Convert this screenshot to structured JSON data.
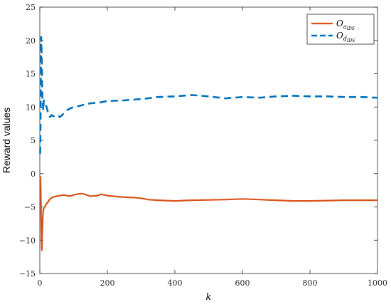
{
  "chart_data": {
    "type": "line",
    "xlabel": "k",
    "ylabel": "Reward values",
    "xlim": [
      0,
      1000
    ],
    "ylim": [
      -15,
      25
    ],
    "xticks": [
      0,
      200,
      400,
      600,
      800,
      1000
    ],
    "yticks": [
      -15,
      -10,
      -5,
      0,
      5,
      10,
      15,
      20,
      25
    ],
    "grid": false,
    "legend_position": "top-right",
    "series": [
      {
        "name": "O_{a_{IDS}}",
        "legend_main": "O",
        "legend_sub": "a",
        "legend_subsub": "IDS",
        "color": "#D95319",
        "style": "solid",
        "points": [
          [
            1,
            -1
          ],
          [
            2,
            -0.5
          ],
          [
            3,
            -3
          ],
          [
            4,
            -7
          ],
          [
            5,
            -10
          ],
          [
            6,
            -11.5
          ],
          [
            7,
            -9.5
          ],
          [
            8,
            -8
          ],
          [
            9,
            -6.5
          ],
          [
            10,
            -5.5
          ],
          [
            12,
            -5.2
          ],
          [
            15,
            -5
          ],
          [
            20,
            -4.5
          ],
          [
            25,
            -4.2
          ],
          [
            30,
            -3.8
          ],
          [
            40,
            -3.5
          ],
          [
            50,
            -3.4
          ],
          [
            60,
            -3.3
          ],
          [
            70,
            -3.2
          ],
          [
            80,
            -3.3
          ],
          [
            90,
            -3.4
          ],
          [
            100,
            -3.2
          ],
          [
            110,
            -3.1
          ],
          [
            120,
            -3.0
          ],
          [
            130,
            -3.05
          ],
          [
            150,
            -3.4
          ],
          [
            170,
            -3.3
          ],
          [
            180,
            -3.1
          ],
          [
            200,
            -3.3
          ],
          [
            240,
            -3.5
          ],
          [
            280,
            -3.6
          ],
          [
            300,
            -3.7
          ],
          [
            320,
            -3.9
          ],
          [
            350,
            -4.0
          ],
          [
            400,
            -4.1
          ],
          [
            450,
            -4.0
          ],
          [
            500,
            -3.95
          ],
          [
            550,
            -3.9
          ],
          [
            600,
            -3.8
          ],
          [
            650,
            -3.9
          ],
          [
            700,
            -4.0
          ],
          [
            750,
            -4.1
          ],
          [
            800,
            -4.1
          ],
          [
            850,
            -4.05
          ],
          [
            900,
            -4.0
          ],
          [
            950,
            -4.0
          ],
          [
            1000,
            -4.0
          ]
        ]
      },
      {
        "name": "O_{d_{IDS}}",
        "legend_main": "O",
        "legend_sub": "d",
        "legend_subsub": "IDS",
        "color": "#0072BD",
        "style": "dashed",
        "points": [
          [
            1,
            3
          ],
          [
            2,
            7
          ],
          [
            3,
            14
          ],
          [
            4,
            20.5
          ],
          [
            5,
            19
          ],
          [
            6,
            16
          ],
          [
            7,
            13
          ],
          [
            8,
            11
          ],
          [
            10,
            9.5
          ],
          [
            12,
            11
          ],
          [
            15,
            10.8
          ],
          [
            20,
            10
          ],
          [
            25,
            9
          ],
          [
            30,
            8.5
          ],
          [
            35,
            8.8
          ],
          [
            40,
            8.6
          ],
          [
            50,
            8.8
          ],
          [
            60,
            8.5
          ],
          [
            70,
            9
          ],
          [
            80,
            9.5
          ],
          [
            90,
            9.8
          ],
          [
            100,
            10
          ],
          [
            120,
            10.2
          ],
          [
            140,
            10.5
          ],
          [
            160,
            10.6
          ],
          [
            180,
            10.7
          ],
          [
            200,
            10.9
          ],
          [
            250,
            11.0
          ],
          [
            300,
            11.2
          ],
          [
            320,
            11.3
          ],
          [
            350,
            11.5
          ],
          [
            400,
            11.6
          ],
          [
            450,
            11.8
          ],
          [
            500,
            11.6
          ],
          [
            550,
            11.3
          ],
          [
            600,
            11.5
          ],
          [
            650,
            11.4
          ],
          [
            700,
            11.6
          ],
          [
            750,
            11.7
          ],
          [
            800,
            11.6
          ],
          [
            850,
            11.6
          ],
          [
            900,
            11.5
          ],
          [
            950,
            11.5
          ],
          [
            1000,
            11.4
          ]
        ]
      }
    ]
  }
}
